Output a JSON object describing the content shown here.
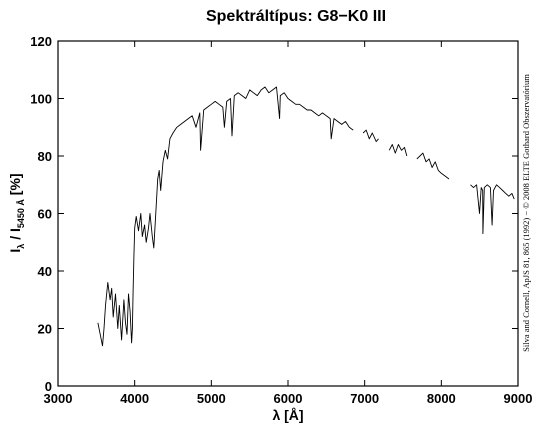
{
  "chart_data": {
    "type": "line",
    "title": "Spektráltípus: G8−K0 III",
    "xlabel": "λ [Å]",
    "ylabel": {
      "main": "I",
      "lambda_sub": "λ",
      "sep": " / I",
      "ref_sub": "5450 Å",
      "unit": " [%]"
    },
    "credit": "Silva and Cornell, ApJS 81, 865 (1992) − © 2008 ELTE Gothard Obszervatórium",
    "xlim": [
      3000,
      9000
    ],
    "ylim": [
      0,
      120
    ],
    "x_ticks": [
      "3000",
      "4000",
      "5000",
      "6000",
      "7000",
      "8000",
      "9000"
    ],
    "y_ticks": [
      "0",
      "20",
      "40",
      "60",
      "80",
      "100",
      "120"
    ],
    "grid": false,
    "series": [
      {
        "segment": 1,
        "x": [
          3520,
          3550,
          3580,
          3600,
          3620,
          3650,
          3680,
          3700,
          3720,
          3750,
          3780,
          3800,
          3830,
          3860,
          3880,
          3900,
          3920,
          3940,
          3960,
          3970,
          3980,
          3990,
          4000,
          4020,
          4050,
          4080,
          4100,
          4130,
          4150,
          4180,
          4200,
          4230,
          4250,
          4280,
          4300,
          4320,
          4340,
          4370,
          4400,
          4430,
          4460,
          4500,
          4550,
          4600,
          4650,
          4700,
          4750,
          4800,
          4850,
          4860,
          4900,
          4950,
          5000,
          5050,
          5100,
          5150,
          5170,
          5200,
          5250,
          5270,
          5300,
          5350,
          5400,
          5450,
          5500,
          5550,
          5600,
          5650,
          5700,
          5750,
          5800,
          5850,
          5890,
          5900,
          5950,
          6000,
          6050,
          6100,
          6150,
          6200,
          6250,
          6300,
          6350,
          6400,
          6450,
          6500,
          6550,
          6563,
          6600,
          6650,
          6700,
          6750,
          6800,
          6850
        ],
        "y": [
          22,
          18,
          14,
          20,
          28,
          36,
          30,
          34,
          24,
          32,
          20,
          28,
          16,
          30,
          22,
          18,
          32,
          26,
          15,
          20,
          33,
          45,
          55,
          59,
          54,
          60,
          52,
          56,
          50,
          55,
          60,
          52,
          48,
          62,
          72,
          75,
          68,
          78,
          82,
          79,
          86,
          88,
          90,
          91,
          92,
          93,
          94,
          90,
          95,
          82,
          96,
          97,
          98,
          99,
          98,
          97,
          90,
          99,
          100,
          87,
          101,
          102,
          101,
          100,
          103,
          102,
          101,
          103,
          104,
          102,
          103,
          104,
          93,
          101,
          102,
          100,
          99,
          98,
          98,
          97,
          96,
          96,
          95,
          94,
          95,
          94,
          93,
          86,
          93,
          92,
          91,
          92,
          90,
          89
        ]
      },
      {
        "segment": 2,
        "x": [
          6980,
          7020,
          7060,
          7100,
          7150,
          7180
        ],
        "y": [
          88,
          89,
          86,
          88,
          85,
          86
        ]
      },
      {
        "segment": 3,
        "x": [
          7320,
          7360,
          7400,
          7440,
          7480,
          7520,
          7550
        ],
        "y": [
          82,
          84,
          81,
          84,
          82,
          83,
          80
        ]
      },
      {
        "segment": 4,
        "x": [
          7680,
          7720,
          7760,
          7800,
          7840,
          7880,
          7920,
          7960,
          8000,
          8050,
          8100
        ],
        "y": [
          79,
          80,
          81,
          78,
          79,
          76,
          78,
          75,
          74,
          73,
          72
        ]
      },
      {
        "segment": 5,
        "x": [
          8380,
          8420,
          8460,
          8498,
          8520,
          8540,
          8542,
          8560,
          8600,
          8640,
          8662,
          8680,
          8720,
          8760,
          8800,
          8840,
          8880,
          8920,
          8950
        ],
        "y": [
          70,
          69,
          70,
          60,
          69,
          68,
          53,
          69,
          70,
          69,
          56,
          68,
          70,
          69,
          68,
          67,
          66,
          67,
          65
        ]
      }
    ]
  }
}
